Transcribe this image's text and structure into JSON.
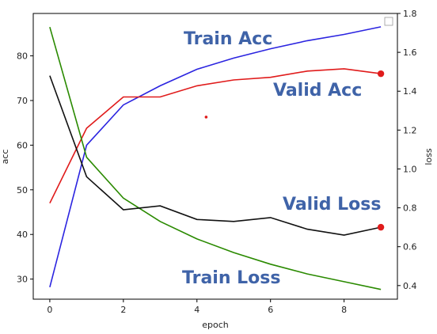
{
  "chart_data": {
    "type": "line",
    "x": [
      0,
      1,
      2,
      3,
      4,
      5,
      6,
      7,
      8,
      9
    ],
    "xlabel": "epoch",
    "xlim": [
      -0.45,
      9.45
    ],
    "xticks": [
      "0",
      "2",
      "4",
      "6",
      "8"
    ],
    "ylabel_left": "acc",
    "ylim_left": [
      25.5,
      89.5
    ],
    "yticks_left": [
      "30",
      "40",
      "50",
      "60",
      "70",
      "80"
    ],
    "ylabel_right": "loss",
    "ylim_right": [
      0.33,
      1.8
    ],
    "yticks_right": [
      "0.4",
      "0.6",
      "0.8",
      "1.0",
      "1.2",
      "1.4",
      "1.6",
      "1.8"
    ],
    "grid": false,
    "series": [
      {
        "name": "Train Acc",
        "axis": "left",
        "color": "#2b24e0",
        "values": [
          28.2,
          60.0,
          69.0,
          73.3,
          77.0,
          79.5,
          81.6,
          83.4,
          84.8,
          86.5
        ]
      },
      {
        "name": "Valid Acc",
        "axis": "left",
        "color": "#e01b1b",
        "values": [
          47.0,
          63.8,
          70.8,
          70.8,
          73.3,
          74.6,
          75.2,
          76.6,
          77.1,
          76.0
        ],
        "end_marker": true
      },
      {
        "name": "Train Loss",
        "axis": "right",
        "color": "#2a8a00",
        "values": [
          1.73,
          1.06,
          0.85,
          0.73,
          0.64,
          0.57,
          0.51,
          0.46,
          0.42,
          0.38
        ]
      },
      {
        "name": "Valid Loss",
        "axis": "right",
        "color": "#111111",
        "values": [
          1.48,
          0.96,
          0.79,
          0.81,
          0.74,
          0.73,
          0.75,
          0.69,
          0.66,
          0.7
        ],
        "end_marker": true,
        "marker_color": "#e01b1b"
      }
    ],
    "stray_point": {
      "x": 4.25,
      "y": 66.3,
      "color": "#e01b1b"
    },
    "legend": "top-right",
    "annotations": [
      {
        "text": "Train Acc"
      },
      {
        "text": "Valid Acc"
      },
      {
        "text": "Valid Loss"
      },
      {
        "text": "Train Loss"
      }
    ]
  }
}
